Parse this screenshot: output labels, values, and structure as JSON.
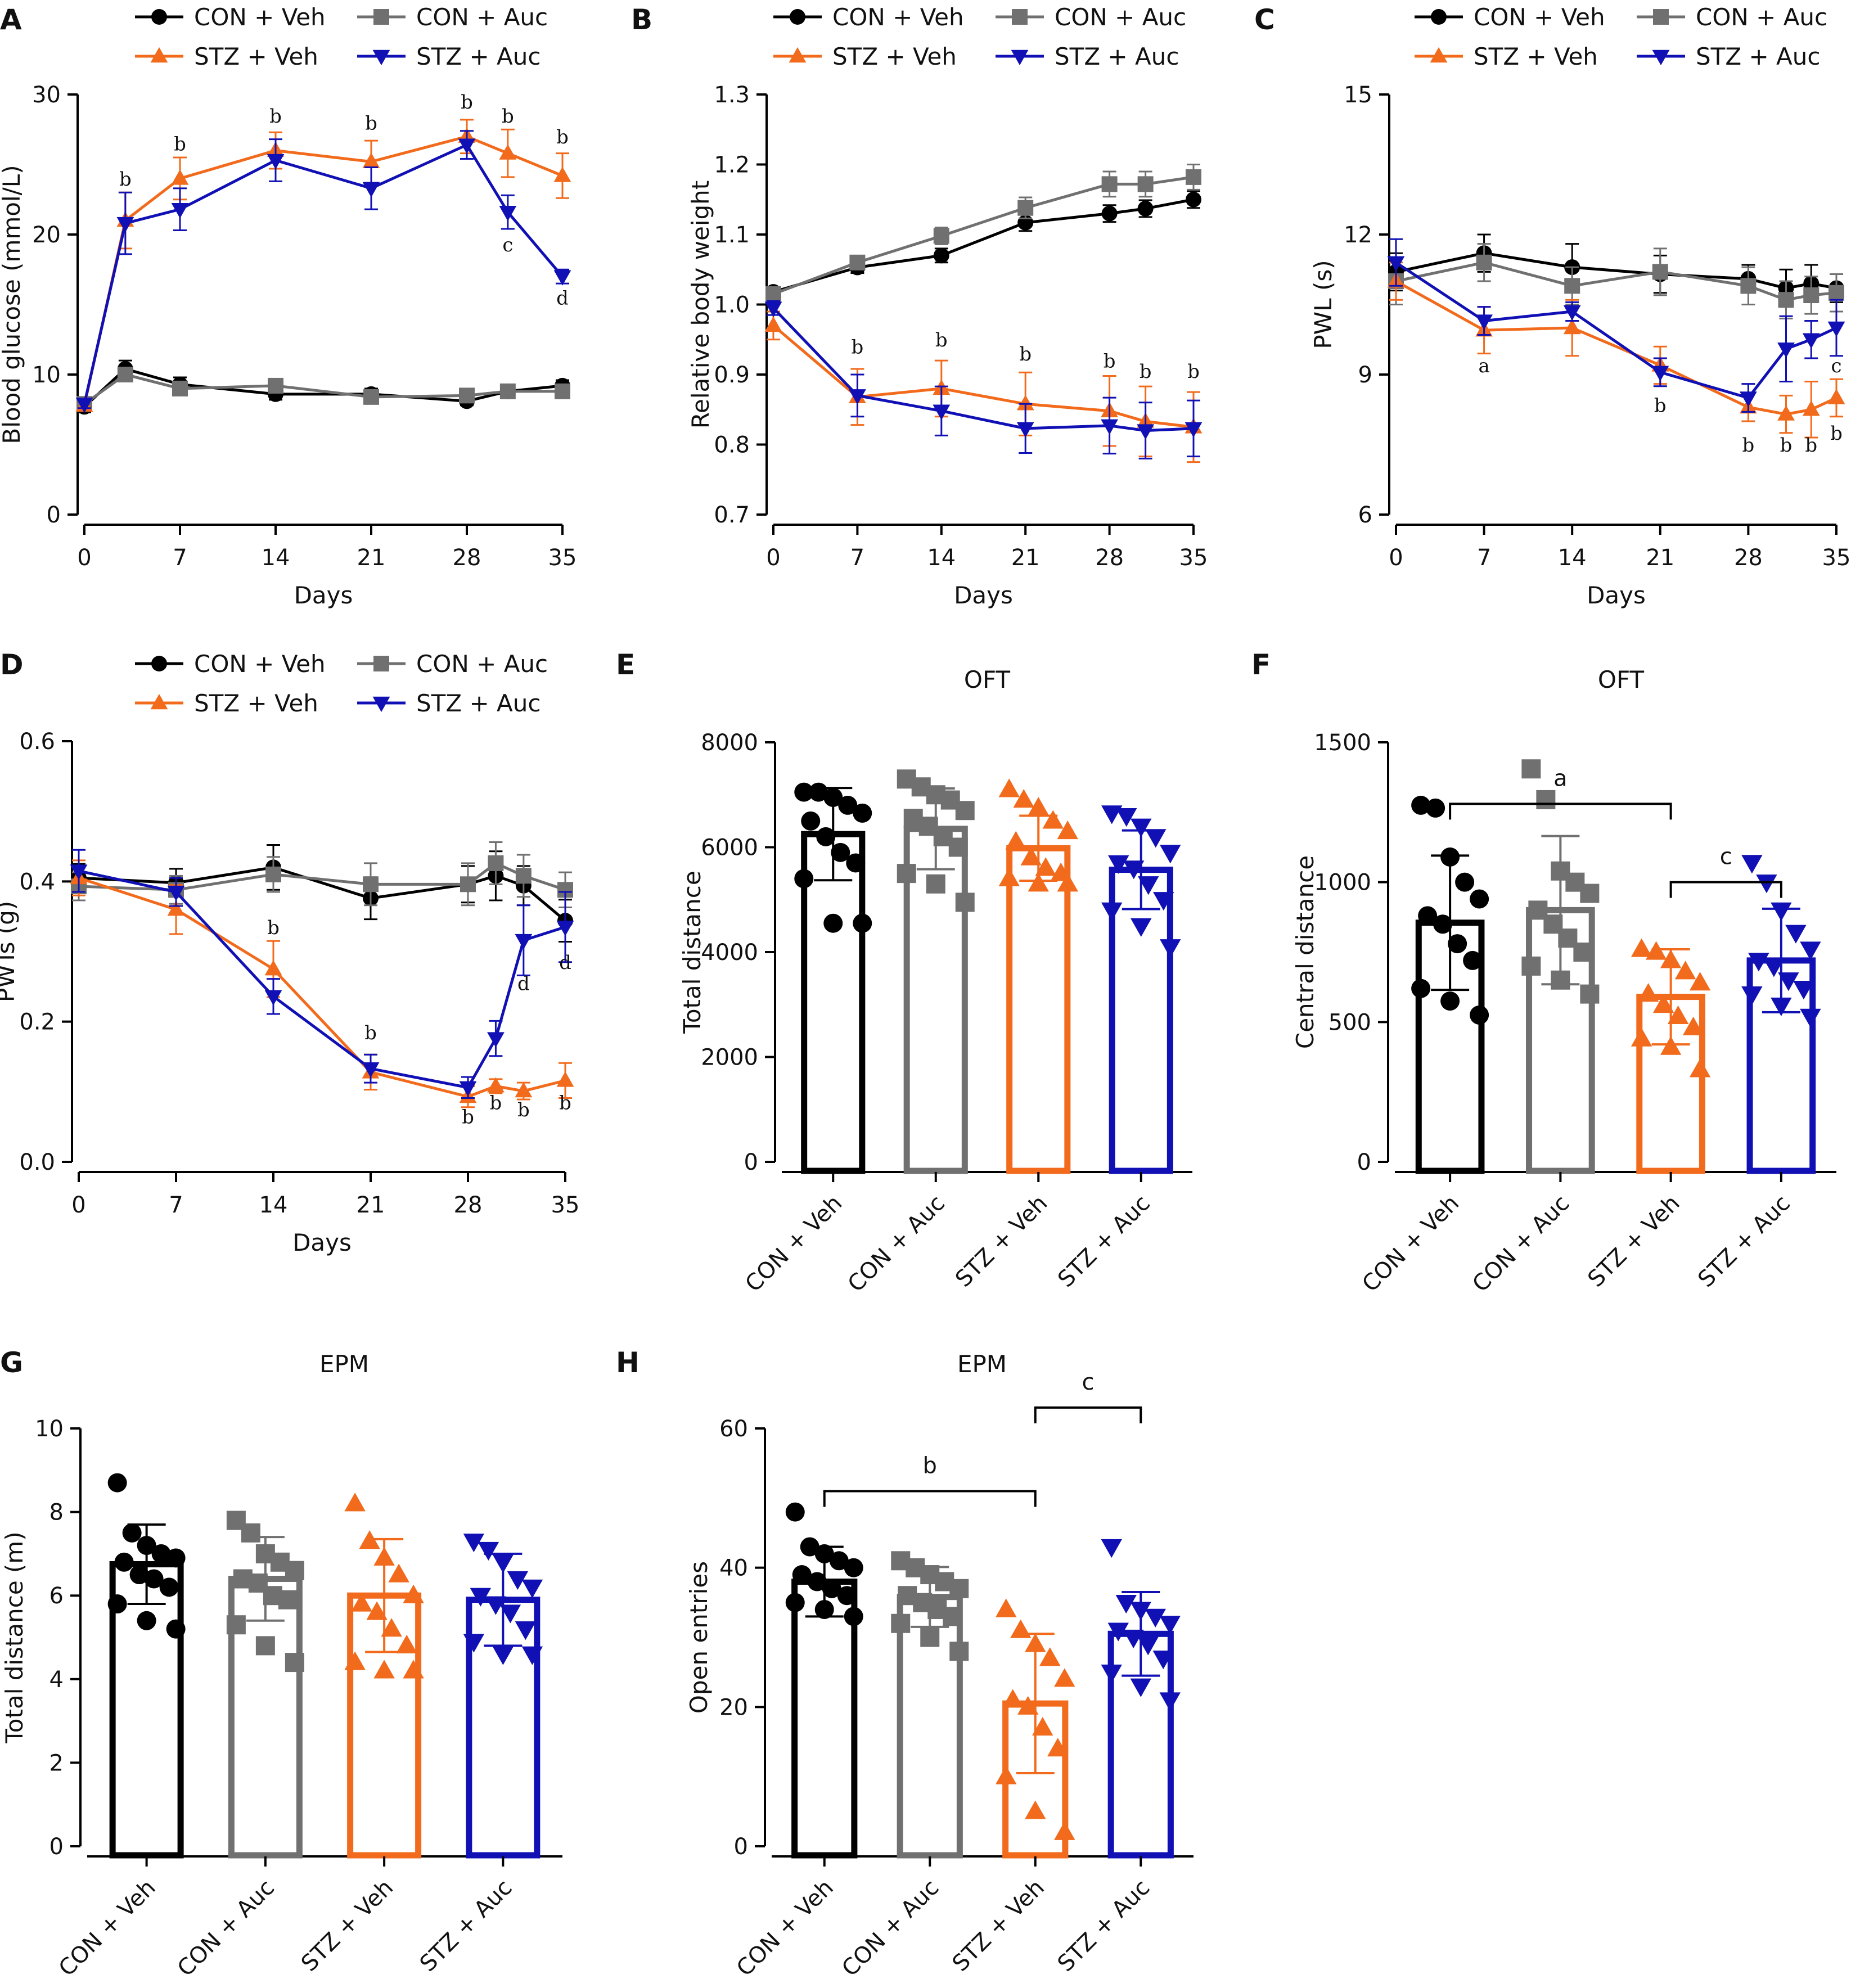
{
  "colors": {
    "CON + Veh": "#000000",
    "CON + Auc": "#707070",
    "STZ + Veh": "#f26a1b",
    "STZ + Auc": "#1010b4",
    "sig_text": "#111111"
  },
  "groups": [
    {
      "name": "CON + Veh",
      "marker": "circle"
    },
    {
      "name": "CON + Auc",
      "marker": "square"
    },
    {
      "name": "STZ + Veh",
      "marker": "triangle-up"
    },
    {
      "name": "STZ + Auc",
      "marker": "triangle-down"
    }
  ],
  "chart_data": [
    {
      "id": "A",
      "type": "line",
      "xlabel": "Days",
      "ylabel": "Blood glucose (mmol/L)",
      "xlim": [
        0,
        35
      ],
      "xticks": [
        0,
        7,
        14,
        21,
        28,
        35
      ],
      "ylim": [
        0,
        30
      ],
      "yticks": [
        "0",
        "10",
        "20",
        "30"
      ],
      "series": [
        {
          "name": "CON + Veh",
          "x": [
            0,
            3,
            7,
            14,
            21,
            28,
            31,
            35
          ],
          "y": [
            7.7,
            10.4,
            9.3,
            8.6,
            8.6,
            8.1,
            8.8,
            9.2
          ],
          "err": [
            0.4,
            0.6,
            0.5,
            0.4,
            0.4,
            0.3,
            0.4,
            0.4
          ]
        },
        {
          "name": "CON + Auc",
          "x": [
            0,
            3,
            7,
            14,
            21,
            28,
            31,
            35
          ],
          "y": [
            7.9,
            10.0,
            9.0,
            9.2,
            8.4,
            8.5,
            8.8,
            8.8
          ],
          "err": [
            0.3,
            0.5,
            0.4,
            0.4,
            0.4,
            0.4,
            0.4,
            0.4
          ]
        },
        {
          "name": "STZ + Veh",
          "x": [
            0,
            3,
            7,
            14,
            21,
            28,
            31,
            35
          ],
          "y": [
            7.8,
            21.0,
            24.0,
            26.0,
            25.2,
            27.0,
            25.8,
            24.2
          ],
          "err": [
            0.3,
            2.0,
            1.5,
            1.3,
            1.5,
            1.2,
            1.7,
            1.6
          ]
        },
        {
          "name": "STZ + Auc",
          "x": [
            0,
            3,
            7,
            14,
            21,
            28,
            31,
            35
          ],
          "y": [
            7.9,
            20.8,
            21.8,
            25.3,
            23.3,
            26.4,
            21.6,
            17.0
          ],
          "err": [
            0.3,
            2.2,
            1.5,
            1.5,
            1.5,
            1.0,
            1.2,
            0.5
          ]
        }
      ],
      "annotations": [
        {
          "text": "b",
          "x": 3,
          "y": 23.5
        },
        {
          "text": "b",
          "x": 7,
          "y": 26.0
        },
        {
          "text": "b",
          "x": 14,
          "y": 28.0
        },
        {
          "text": "b",
          "x": 21,
          "y": 27.5
        },
        {
          "text": "b",
          "x": 28,
          "y": 29.0
        },
        {
          "text": "b",
          "x": 31,
          "y": 28.0
        },
        {
          "text": "b",
          "x": 35,
          "y": 26.5
        },
        {
          "text": "c",
          "x": 31,
          "y": 18.8
        },
        {
          "text": "d",
          "x": 35,
          "y": 15.0
        }
      ]
    },
    {
      "id": "B",
      "type": "line",
      "xlabel": "Days",
      "ylabel": "Relative body weight",
      "xlim": [
        0,
        35
      ],
      "xticks": [
        0,
        7,
        14,
        21,
        28,
        35
      ],
      "ylim": [
        0.7,
        1.3
      ],
      "yticks": [
        "0.7",
        "0.8",
        "0.9",
        "1.0",
        "1.1",
        "1.2",
        "1.3"
      ],
      "series": [
        {
          "name": "CON + Veh",
          "x": [
            0,
            7,
            14,
            21,
            28,
            31,
            35
          ],
          "y": [
            1.018,
            1.053,
            1.07,
            1.117,
            1.13,
            1.137,
            1.15
          ],
          "err": [
            0.006,
            0.008,
            0.01,
            0.012,
            0.012,
            0.012,
            0.012
          ]
        },
        {
          "name": "CON + Auc",
          "x": [
            0,
            7,
            14,
            21,
            28,
            31,
            35
          ],
          "y": [
            1.015,
            1.06,
            1.098,
            1.138,
            1.172,
            1.172,
            1.182
          ],
          "err": [
            0.006,
            0.008,
            0.012,
            0.015,
            0.018,
            0.018,
            0.018
          ]
        },
        {
          "name": "STZ + Veh",
          "x": [
            0,
            7,
            14,
            21,
            28,
            31,
            35
          ],
          "y": [
            0.97,
            0.868,
            0.88,
            0.858,
            0.848,
            0.833,
            0.825
          ],
          "err": [
            0.02,
            0.04,
            0.04,
            0.045,
            0.05,
            0.05,
            0.05
          ]
        },
        {
          "name": "STZ + Auc",
          "x": [
            0,
            7,
            14,
            21,
            28,
            31,
            35
          ],
          "y": [
            0.995,
            0.87,
            0.848,
            0.823,
            0.827,
            0.82,
            0.823
          ],
          "err": [
            0.01,
            0.03,
            0.035,
            0.035,
            0.04,
            0.04,
            0.04
          ]
        }
      ],
      "annotations": [
        {
          "text": "b",
          "x": 7,
          "y": 0.93
        },
        {
          "text": "b",
          "x": 14,
          "y": 0.94
        },
        {
          "text": "b",
          "x": 21,
          "y": 0.92
        },
        {
          "text": "b",
          "x": 28,
          "y": 0.91
        },
        {
          "text": "b",
          "x": 31,
          "y": 0.895
        },
        {
          "text": "b",
          "x": 35,
          "y": 0.895
        }
      ]
    },
    {
      "id": "C",
      "type": "line",
      "xlabel": "Days",
      "ylabel": "PWL (s)",
      "xlim": [
        0,
        35
      ],
      "xticks": [
        0,
        7,
        14,
        21,
        28,
        35
      ],
      "ylim": [
        6,
        15
      ],
      "yticks": [
        "6",
        "9",
        "12",
        "15"
      ],
      "series": [
        {
          "name": "CON + Veh",
          "x": [
            0,
            7,
            14,
            21,
            28,
            31,
            33,
            35
          ],
          "y": [
            11.2,
            11.6,
            11.3,
            11.15,
            11.05,
            10.85,
            10.95,
            10.85
          ],
          "err": [
            0.4,
            0.4,
            0.5,
            0.4,
            0.3,
            0.4,
            0.4,
            0.3
          ]
        },
        {
          "name": "CON + Auc",
          "x": [
            0,
            7,
            14,
            21,
            28,
            31,
            33,
            35
          ],
          "y": [
            11.0,
            11.4,
            10.9,
            11.2,
            10.9,
            10.6,
            10.7,
            10.75
          ],
          "err": [
            0.5,
            0.4,
            0.4,
            0.5,
            0.4,
            0.4,
            0.4,
            0.4
          ]
        },
        {
          "name": "STZ + Veh",
          "x": [
            0,
            7,
            14,
            21,
            28,
            31,
            33,
            35
          ],
          "y": [
            11.0,
            9.95,
            10.0,
            9.2,
            8.3,
            8.15,
            8.25,
            8.5
          ],
          "err": [
            0.4,
            0.5,
            0.6,
            0.4,
            0.3,
            0.4,
            0.6,
            0.4
          ]
        },
        {
          "name": "STZ + Auc",
          "x": [
            0,
            7,
            14,
            21,
            28,
            31,
            33,
            35
          ],
          "y": [
            11.4,
            10.15,
            10.35,
            9.05,
            8.5,
            9.55,
            9.75,
            10.0
          ],
          "err": [
            0.5,
            0.3,
            0.2,
            0.3,
            0.3,
            0.7,
            0.4,
            0.6
          ]
        }
      ],
      "annotations": [
        {
          "text": "a",
          "x": 7,
          "y": 9.05
        },
        {
          "text": "b",
          "x": 21,
          "y": 8.2
        },
        {
          "text": "b",
          "x": 28,
          "y": 7.35
        },
        {
          "text": "b",
          "x": 31,
          "y": 7.35
        },
        {
          "text": "b",
          "x": 33,
          "y": 7.35
        },
        {
          "text": "b",
          "x": 35,
          "y": 7.6
        },
        {
          "text": "c",
          "x": 35,
          "y": 9.05
        }
      ]
    },
    {
      "id": "D",
      "type": "line",
      "xlabel": "Days",
      "ylabel": "PWTs (g)",
      "xlim": [
        0,
        35
      ],
      "xticks": [
        0,
        7,
        14,
        21,
        28,
        35
      ],
      "ylim": [
        0.0,
        0.6
      ],
      "yticks": [
        "0.0",
        "0.2",
        "0.4",
        "0.6"
      ],
      "series": [
        {
          "name": "CON + Veh",
          "x": [
            0,
            7,
            14,
            21,
            28,
            30,
            32,
            35
          ],
          "y": [
            0.405,
            0.398,
            0.42,
            0.376,
            0.396,
            0.408,
            0.394,
            0.344
          ],
          "err": [
            0.02,
            0.02,
            0.032,
            0.03,
            0.026,
            0.035,
            0.028,
            0.03
          ]
        },
        {
          "name": "CON + Auc",
          "x": [
            0,
            7,
            14,
            21,
            28,
            30,
            32,
            35
          ],
          "y": [
            0.393,
            0.388,
            0.41,
            0.396,
            0.396,
            0.426,
            0.408,
            0.388
          ],
          "err": [
            0.02,
            0.02,
            0.025,
            0.03,
            0.03,
            0.03,
            0.03,
            0.025
          ]
        },
        {
          "name": "STZ + Veh",
          "x": [
            0,
            7,
            14,
            21,
            28,
            30,
            32,
            35
          ],
          "y": [
            0.405,
            0.36,
            0.275,
            0.128,
            0.093,
            0.108,
            0.101,
            0.116
          ],
          "err": [
            0.025,
            0.035,
            0.04,
            0.025,
            0.015,
            0.01,
            0.012,
            0.025
          ]
        },
        {
          "name": "STZ + Auc",
          "x": [
            0,
            7,
            14,
            21,
            28,
            30,
            32,
            35
          ],
          "y": [
            0.415,
            0.385,
            0.236,
            0.133,
            0.106,
            0.176,
            0.316,
            0.335
          ],
          "err": [
            0.03,
            0.02,
            0.025,
            0.02,
            0.015,
            0.025,
            0.05,
            0.05
          ]
        }
      ],
      "annotations": [
        {
          "text": "b",
          "x": 14,
          "y": 0.325
        },
        {
          "text": "b",
          "x": 21,
          "y": 0.175
        },
        {
          "text": "b",
          "x": 28,
          "y": 0.055
        },
        {
          "text": "b",
          "x": 30,
          "y": 0.075
        },
        {
          "text": "b",
          "x": 32,
          "y": 0.065
        },
        {
          "text": "b",
          "x": 35,
          "y": 0.075
        },
        {
          "text": "d",
          "x": 32,
          "y": 0.245
        },
        {
          "text": "d",
          "x": 35,
          "y": 0.275
        }
      ]
    },
    {
      "id": "E",
      "type": "bar",
      "title": "OFT",
      "ylabel": "Total distance",
      "categories": [
        "CON + Veh",
        "CON + Auc",
        "STZ + Veh",
        "STZ + Auc"
      ],
      "ylim": [
        0,
        8000
      ],
      "yticks": [
        "0",
        "2000",
        "4000",
        "6000",
        "8000"
      ],
      "values": [
        6250,
        6350,
        5980,
        5570
      ],
      "sd": [
        880,
        770,
        620,
        750
      ],
      "points": [
        [
          7050,
          7050,
          6950,
          6800,
          6650,
          6500,
          6200,
          5900,
          5700,
          5400,
          4550,
          4550
        ],
        [
          7300,
          7150,
          7000,
          6900,
          6700,
          6550,
          6400,
          6200,
          6000,
          5500,
          5300,
          4950
        ],
        [
          7100,
          6900,
          6750,
          6500,
          6300,
          6100,
          5800,
          5600,
          5500,
          5400,
          5300,
          5300
        ],
        [
          6650,
          6600,
          6400,
          6200,
          5900,
          5700,
          5600,
          5300,
          5000,
          4800,
          4500,
          4100
        ]
      ]
    },
    {
      "id": "F",
      "type": "bar",
      "title": "OFT",
      "ylabel": "Central distance",
      "categories": [
        "CON + Veh",
        "CON + Auc",
        "STZ + Veh",
        "STZ + Auc"
      ],
      "ylim": [
        0,
        1500
      ],
      "yticks": [
        "0",
        "500",
        "1000",
        "1500"
      ],
      "values": [
        855,
        900,
        590,
        720
      ],
      "sd": [
        240,
        265,
        170,
        185
      ],
      "points": [
        [
          1275,
          1265,
          1090,
          1000,
          940,
          880,
          850,
          780,
          720,
          620,
          575,
          525
        ],
        [
          1405,
          1295,
          1040,
          1000,
          960,
          900,
          850,
          800,
          750,
          700,
          650,
          600
        ],
        [
          760,
          750,
          720,
          680,
          640,
          600,
          560,
          520,
          480,
          440,
          410,
          330
        ],
        [
          1070,
          1000,
          900,
          820,
          760,
          720,
          700,
          650,
          620,
          600,
          560,
          520
        ]
      ],
      "significance": [
        {
          "text": "a",
          "from": 0,
          "to": 2,
          "y": 1280
        },
        {
          "text": "c",
          "from": 2,
          "to": 3,
          "y": 1000
        }
      ]
    },
    {
      "id": "G",
      "type": "bar",
      "title": "EPM",
      "ylabel": "Total distance (m)",
      "categories": [
        "CON + Veh",
        "CON + Auc",
        "STZ + Veh",
        "STZ + Auc"
      ],
      "ylim": [
        0,
        10
      ],
      "yticks": [
        "0",
        "2",
        "4",
        "6",
        "8",
        "10"
      ],
      "values": [
        6.75,
        6.4,
        6.0,
        5.9
      ],
      "sd": [
        0.95,
        1.0,
        1.35,
        1.1
      ],
      "points": [
        [
          8.7,
          7.5,
          7.2,
          7.0,
          6.9,
          6.8,
          6.5,
          6.4,
          6.2,
          5.8,
          5.4,
          5.2
        ],
        [
          7.8,
          7.5,
          7.0,
          6.8,
          6.6,
          6.4,
          6.3,
          6.0,
          5.9,
          5.3,
          4.8,
          4.4
        ],
        [
          8.2,
          7.3,
          6.9,
          6.5,
          6.0,
          5.8,
          5.6,
          5.2,
          4.8,
          4.4,
          4.2,
          4.2
        ],
        [
          7.3,
          7.1,
          6.8,
          6.4,
          6.2,
          6.0,
          5.8,
          5.6,
          5.2,
          4.9,
          4.6,
          4.6
        ]
      ]
    },
    {
      "id": "H",
      "type": "bar",
      "title": "EPM",
      "ylabel": "Open entries",
      "categories": [
        "CON + Veh",
        "CON + Auc",
        "STZ + Veh",
        "STZ + Auc"
      ],
      "ylim": [
        0,
        60
      ],
      "yticks": [
        "0",
        "20",
        "40",
        "60"
      ],
      "values": [
        38.0,
        35.8,
        20.5,
        30.5
      ],
      "sd": [
        5.0,
        4.3,
        10.0,
        6.0
      ],
      "points": [
        [
          48,
          43,
          42,
          41,
          40,
          39,
          38,
          37,
          36,
          35,
          34,
          33
        ],
        [
          41,
          40,
          39,
          38,
          37,
          36,
          35,
          34,
          33,
          32,
          30,
          28
        ],
        [
          34,
          31,
          29,
          27,
          24,
          21,
          20,
          17,
          14,
          10,
          5,
          2
        ],
        [
          43,
          35,
          34,
          33,
          32,
          31,
          30,
          29,
          27,
          25,
          23,
          21
        ]
      ],
      "significance": [
        {
          "text": "b",
          "from": 0,
          "to": 2,
          "y": 51
        },
        {
          "text": "c",
          "from": 2,
          "to": 3,
          "y": 63
        }
      ]
    }
  ]
}
